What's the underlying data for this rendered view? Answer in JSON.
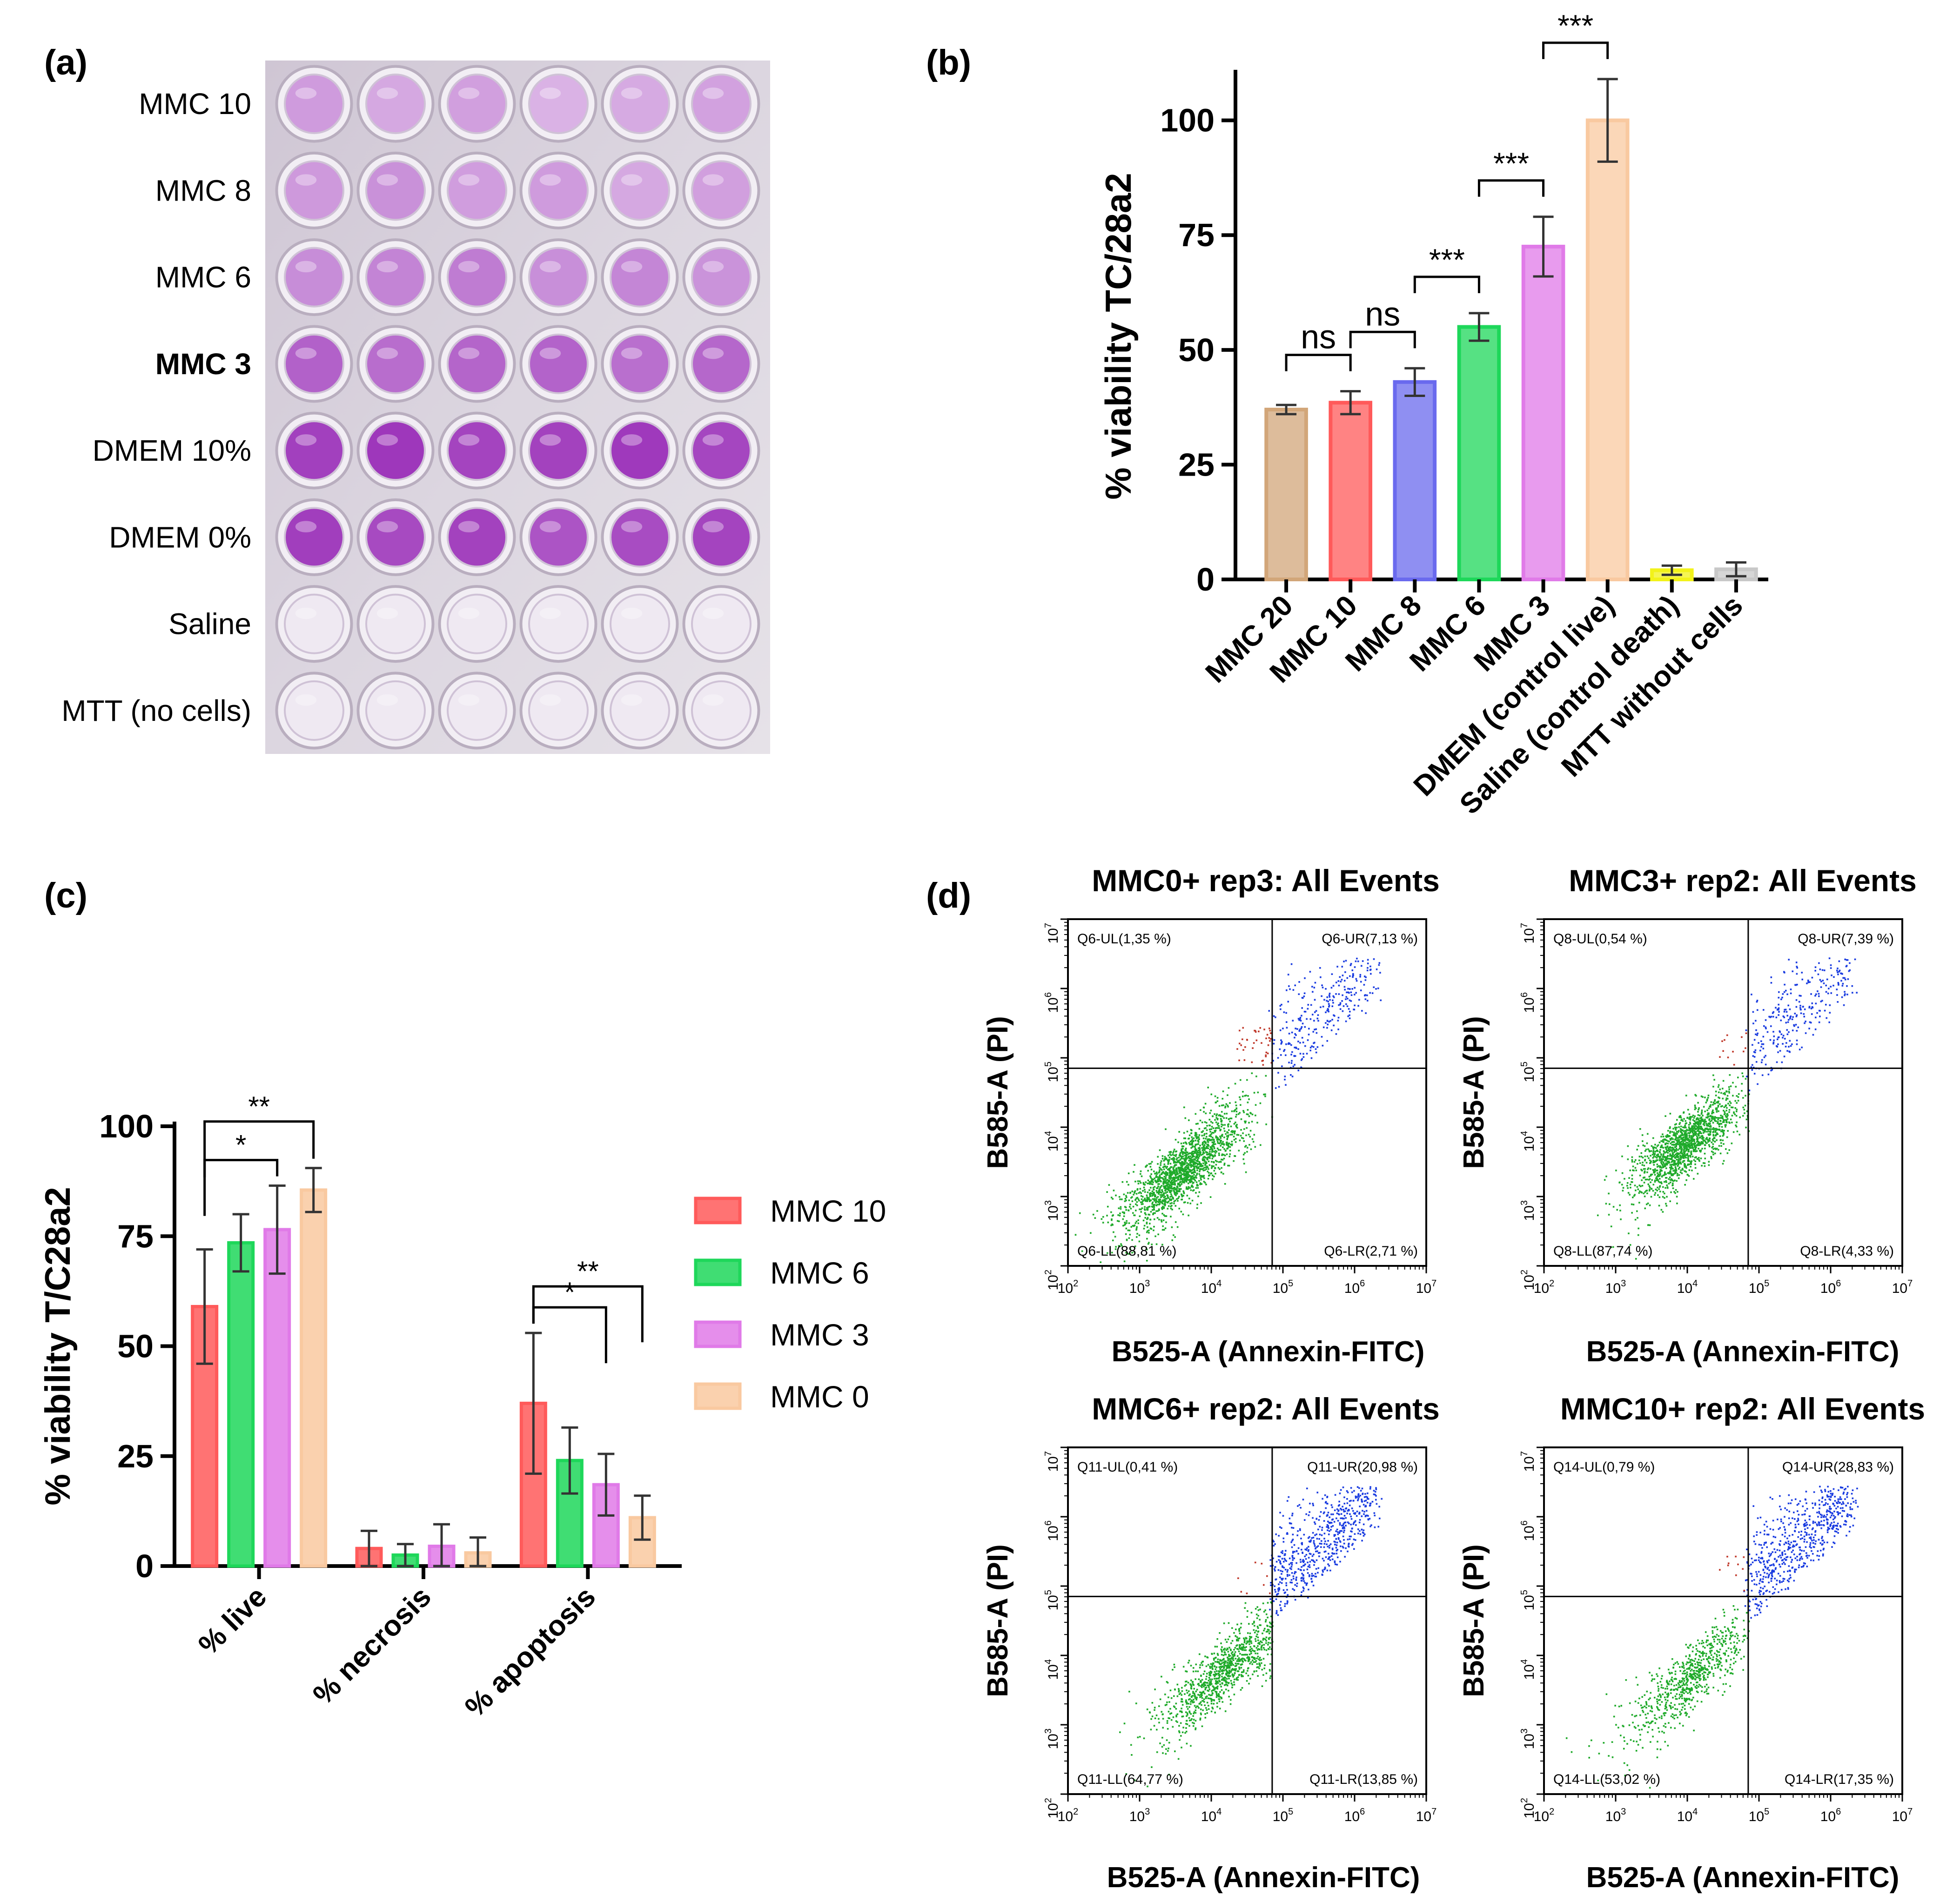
{
  "panel_labels": {
    "a": "(a)",
    "b": "(b)",
    "c": "(c)",
    "d": "(d)"
  },
  "colors": {
    "brown": "#d2a679",
    "red": "#ff5a5a",
    "blue": "#6a6aee",
    "green": "#1ed75a",
    "violet": "#e07ae8",
    "peach": "#f9c9a0",
    "yellow": "#f2f21a",
    "grey": "#c8c8c8",
    "well_purple": "#9a2fb8",
    "well_light": "#c77ad8",
    "scatter_green": "#1faa2a",
    "scatter_blue": "#1a3ce0",
    "scatter_red": "#c0392b"
  },
  "panel_a": {
    "row_labels": [
      "MMC 10",
      "MMC 8",
      "MMC 6",
      "MMC 3",
      "DMEM 10%",
      "DMEM 0%",
      "Saline",
      "MTT (no cells)"
    ],
    "bold_row": "MMC 3",
    "row_intensity": [
      0.45,
      0.5,
      0.6,
      0.75,
      0.95,
      0.9,
      0.05,
      0.04
    ]
  },
  "chart_data": [
    {
      "id": "b",
      "type": "bar",
      "title": "",
      "ylabel": "% viability  TC/28a2",
      "xlabel": "",
      "ylim": [
        0,
        110
      ],
      "yticks": [
        "0",
        "25",
        "50",
        "75",
        "100"
      ],
      "categories": [
        "MMC 20",
        "MMC 10",
        "MMC 8",
        "MMC 6",
        "MMC 3",
        "DMEM (control live)",
        "Saline (control death)",
        "MTT without cells"
      ],
      "values": [
        37,
        38.5,
        43,
        55,
        72.5,
        100,
        2,
        2.2
      ],
      "errors": [
        1,
        2.5,
        3,
        3,
        6.5,
        9,
        1,
        1.5
      ],
      "bar_colors": [
        "brown",
        "red",
        "blue",
        "green",
        "violet",
        "peach",
        "yellow",
        "grey"
      ],
      "significance": [
        {
          "from": 0,
          "to": 1,
          "label": "ns"
        },
        {
          "from": 1,
          "to": 2,
          "label": "ns"
        },
        {
          "from": 2,
          "to": 3,
          "label": "***"
        },
        {
          "from": 3,
          "to": 4,
          "label": "***"
        },
        {
          "from": 4,
          "to": 5,
          "label": "***"
        }
      ]
    },
    {
      "id": "c",
      "type": "bar",
      "title": "",
      "ylabel": "% viability T/C28a2",
      "xlabel": "",
      "ylim": [
        0,
        100
      ],
      "yticks": [
        "0",
        "25",
        "50",
        "75",
        "100"
      ],
      "categories": [
        "% live",
        "% necrosis",
        "% apoptosis"
      ],
      "series": [
        {
          "name": "MMC 10",
          "color": "red",
          "values": [
            59,
            4,
            37
          ],
          "errors": [
            13,
            4,
            16
          ]
        },
        {
          "name": "MMC 6",
          "color": "green",
          "values": [
            73.5,
            2.5,
            24
          ],
          "errors": [
            6.5,
            2.5,
            7.5
          ]
        },
        {
          "name": "MMC 3",
          "color": "violet",
          "values": [
            76.5,
            4.5,
            18.5
          ],
          "errors": [
            10,
            5,
            7
          ]
        },
        {
          "name": "MMC 0",
          "color": "peach",
          "values": [
            85.5,
            3,
            11
          ],
          "errors": [
            5,
            3.5,
            5
          ]
        }
      ],
      "legend_position": "right",
      "significance": [
        {
          "category": 0,
          "from": 0,
          "to": 2,
          "label": "*"
        },
        {
          "category": 0,
          "from": 0,
          "to": 3,
          "label": "**"
        },
        {
          "category": 2,
          "from": 0,
          "to": 2,
          "label": "*"
        },
        {
          "category": 2,
          "from": 0,
          "to": 3,
          "label": "**"
        }
      ]
    },
    {
      "id": "d",
      "type": "scatter",
      "xlabel": "B525-A (Annexin-FITC)",
      "ylabel": "B585-A (PI)",
      "xlim_log10": [
        2,
        7
      ],
      "ylim_log10": [
        2,
        7
      ],
      "ticks_log10": [
        "2",
        "3",
        "4",
        "5",
        "6",
        "7"
      ],
      "tick_base": "10",
      "plots": [
        {
          "title": "MMC0+ rep3: All Events",
          "UL": "Q6-UL(1,35 %)",
          "UR": "Q6-UR(7,13 %)",
          "LL": "Q6-LL(88,81 %)",
          "LR": "Q6-LR(2,71 %)",
          "gate_x": 4.85,
          "gate_y": 4.85,
          "seed": 11,
          "n_green": 1800,
          "n_blue": 330,
          "n_red": 40,
          "green_cx": 3.6,
          "green_cy": 3.4,
          "green_spread": 0.42,
          "red_count": 40
        },
        {
          "title": "MMC3+ rep2: All Events",
          "UL": "Q8-UL(0,54 %)",
          "UR": "Q8-UR(7,39 %)",
          "LL": "Q8-LL(87,74 %)",
          "LR": "Q8-LR(4,33 %)",
          "gate_x": 4.85,
          "gate_y": 4.85,
          "seed": 23,
          "n_green": 1500,
          "n_blue": 320,
          "n_red": 12,
          "green_cx": 3.95,
          "green_cy": 3.75,
          "green_spread": 0.35,
          "red_count": 12
        },
        {
          "title": "MMC6+ rep2: All Events",
          "UL": "Q11-UL(0,41 %)",
          "UR": "Q11-UR(20,98 %)",
          "LL": "Q11-LL(64,77 %)",
          "LR": "Q11-LR(13,85 %)",
          "gate_x": 4.85,
          "gate_y": 4.85,
          "seed": 37,
          "n_green": 1100,
          "n_blue": 700,
          "n_red": 8,
          "green_cx": 4.2,
          "green_cy": 3.8,
          "green_spread": 0.45,
          "red_count": 8
        },
        {
          "title": "MMC10+ rep2: All Events",
          "UL": "Q14-UL(0,79 %)",
          "UR": "Q14-UR(28,83 %)",
          "LL": "Q14-LL(53,02 %)",
          "LR": "Q14-LR(17,35 %)",
          "gate_x": 4.85,
          "gate_y": 4.85,
          "seed": 53,
          "n_green": 800,
          "n_blue": 700,
          "n_red": 10,
          "green_cx": 4.1,
          "green_cy": 3.75,
          "green_spread": 0.5,
          "red_count": 10
        }
      ]
    }
  ]
}
